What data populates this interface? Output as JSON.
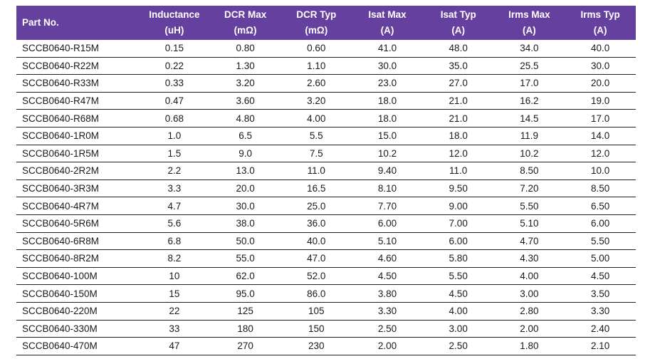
{
  "table": {
    "columns": [
      {
        "label": "Part No.",
        "unit": ""
      },
      {
        "label": "Inductance",
        "unit": "(uH)"
      },
      {
        "label": "DCR Max",
        "unit": "(mΩ)"
      },
      {
        "label": "DCR Typ",
        "unit": "(mΩ)"
      },
      {
        "label": "Isat Max",
        "unit": "(A)"
      },
      {
        "label": "Isat Typ",
        "unit": "(A)"
      },
      {
        "label": "Irms Max",
        "unit": "(A)"
      },
      {
        "label": "Irms Typ",
        "unit": "(A)"
      }
    ],
    "rows": [
      [
        "SCCB0640-R15M",
        "0.15",
        "0.80",
        "0.60",
        "41.0",
        "48.0",
        "34.0",
        "40.0"
      ],
      [
        "SCCB0640-R22M",
        "0.22",
        "1.30",
        "1.10",
        "30.0",
        "35.0",
        "25.5",
        "30.0"
      ],
      [
        "SCCB0640-R33M",
        "0.33",
        "3.20",
        "2.60",
        "23.0",
        "27.0",
        "17.0",
        "20.0"
      ],
      [
        "SCCB0640-R47M",
        "0.47",
        "3.60",
        "3.20",
        "18.0",
        "21.0",
        "16.2",
        "19.0"
      ],
      [
        "SCCB0640-R68M",
        "0.68",
        "4.80",
        "4.00",
        "18.0",
        "21.0",
        "14.5",
        "17.0"
      ],
      [
        "SCCB0640-1R0M",
        "1.0",
        "6.5",
        "5.5",
        "15.0",
        "18.0",
        "11.9",
        "14.0"
      ],
      [
        "SCCB0640-1R5M",
        "1.5",
        "9.0",
        "7.5",
        "10.2",
        "12.0",
        "10.2",
        "12.0"
      ],
      [
        "SCCB0640-2R2M",
        "2.2",
        "13.0",
        "11.0",
        "9.40",
        "11.0",
        "8.50",
        "10.0"
      ],
      [
        "SCCB0640-3R3M",
        "3.3",
        "20.0",
        "16.5",
        "8.10",
        "9.50",
        "7.20",
        "8.50"
      ],
      [
        "SCCB0640-4R7M",
        "4.7",
        "30.0",
        "25.0",
        "7.70",
        "9.00",
        "5.50",
        "6.50"
      ],
      [
        "SCCB0640-5R6M",
        "5.6",
        "38.0",
        "36.0",
        "6.00",
        "7.00",
        "5.10",
        "6.00"
      ],
      [
        "SCCB0640-6R8M",
        "6.8",
        "50.0",
        "40.0",
        "5.10",
        "6.00",
        "4.70",
        "5.50"
      ],
      [
        "SCCB0640-8R2M",
        "8.2",
        "55.0",
        "47.0",
        "4.60",
        "5.80",
        "4.30",
        "5.00"
      ],
      [
        "SCCB0640-100M",
        "10",
        "62.0",
        "52.0",
        "4.50",
        "5.50",
        "4.00",
        "4.50"
      ],
      [
        "SCCB0640-150M",
        "15",
        "95.0",
        "86.0",
        "3.80",
        "4.50",
        "3.00",
        "3.50"
      ],
      [
        "SCCB0640-220M",
        "22",
        "125",
        "105",
        "3.30",
        "4.00",
        "2.80",
        "3.30"
      ],
      [
        "SCCB0640-330M",
        "33",
        "180",
        "150",
        "2.50",
        "3.00",
        "2.00",
        "2.40"
      ],
      [
        "SCCB0640-470M",
        "47",
        "270",
        "230",
        "2.00",
        "2.50",
        "1.80",
        "2.10"
      ]
    ]
  },
  "colors": {
    "header_bg": "#66409E",
    "header_text": "#FFFFFF",
    "body_text": "#1A1A1A",
    "row_divider": "#1F1F1F",
    "background": "#FFFFFF"
  }
}
